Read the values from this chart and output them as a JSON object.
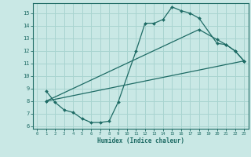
{
  "xlabel": "Humidex (Indice chaleur)",
  "xlim": [
    -0.5,
    23.5
  ],
  "ylim": [
    5.8,
    15.8
  ],
  "yticks": [
    6,
    7,
    8,
    9,
    10,
    11,
    12,
    13,
    14,
    15
  ],
  "xticks": [
    0,
    1,
    2,
    3,
    4,
    5,
    6,
    7,
    8,
    9,
    10,
    11,
    12,
    13,
    14,
    15,
    16,
    17,
    18,
    19,
    20,
    21,
    22,
    23
  ],
  "bg_color": "#c9e8e5",
  "grid_color": "#a8d4d0",
  "line_color": "#1e6b65",
  "line1_x": [
    1,
    2,
    3,
    4,
    5,
    6,
    7,
    8,
    9,
    11,
    12,
    13,
    14,
    15,
    16,
    17,
    18,
    20,
    21,
    22,
    23
  ],
  "line1_y": [
    8.8,
    7.9,
    7.3,
    7.1,
    6.6,
    6.3,
    6.3,
    6.4,
    7.9,
    12.0,
    14.2,
    14.2,
    14.5,
    15.5,
    15.2,
    15.0,
    14.6,
    12.6,
    12.5,
    12.0,
    11.2
  ],
  "line2_x": [
    1,
    23
  ],
  "line2_y": [
    8.0,
    11.2
  ],
  "line3_x": [
    1,
    18,
    20,
    21,
    22,
    23
  ],
  "line3_y": [
    8.0,
    13.7,
    12.9,
    12.5,
    12.0,
    11.2
  ]
}
